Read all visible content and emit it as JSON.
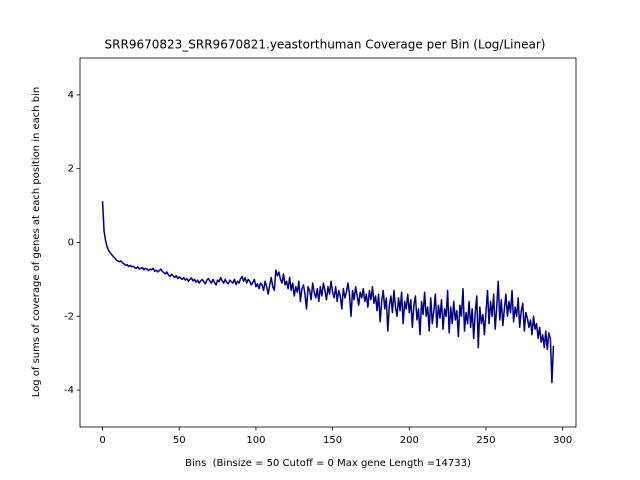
{
  "chart_data": {
    "type": "line",
    "title": "SRR9670823_SRR9670821.yeastorthuman Coverage per Bin (Log/Linear)",
    "x_label": "Bins  (Binsize = 50 Cutoff = 0 Max gene Length =14733)",
    "y_label": "Log of sums of coverage of genes at each position in each bin",
    "color": "#000080",
    "xlim": [
      -14.7,
      308.7
    ],
    "ylim": [
      -5,
      5
    ],
    "xticks": [
      0,
      50,
      100,
      150,
      200,
      250,
      300
    ],
    "yticks": [
      -4,
      -2,
      0,
      2,
      4
    ],
    "x": [
      0,
      1,
      2,
      3,
      4,
      5,
      6,
      7,
      8,
      9,
      10,
      11,
      12,
      13,
      14,
      15,
      16,
      17,
      18,
      19,
      20,
      21,
      22,
      23,
      24,
      25,
      26,
      27,
      28,
      29,
      30,
      31,
      32,
      33,
      34,
      35,
      36,
      37,
      38,
      39,
      40,
      41,
      42,
      43,
      44,
      45,
      46,
      47,
      48,
      49,
      50,
      51,
      52,
      53,
      54,
      55,
      56,
      57,
      58,
      59,
      60,
      61,
      62,
      63,
      64,
      65,
      66,
      67,
      68,
      69,
      70,
      71,
      72,
      73,
      74,
      75,
      76,
      77,
      78,
      79,
      80,
      81,
      82,
      83,
      84,
      85,
      86,
      87,
      88,
      89,
      90,
      91,
      92,
      93,
      94,
      95,
      96,
      97,
      98,
      99,
      100,
      101,
      102,
      103,
      104,
      105,
      106,
      107,
      108,
      109,
      110,
      111,
      112,
      113,
      114,
      115,
      116,
      117,
      118,
      119,
      120,
      121,
      122,
      123,
      124,
      125,
      126,
      127,
      128,
      129,
      130,
      131,
      132,
      133,
      134,
      135,
      136,
      137,
      138,
      139,
      140,
      141,
      142,
      143,
      144,
      145,
      146,
      147,
      148,
      149,
      150,
      151,
      152,
      153,
      154,
      155,
      156,
      157,
      158,
      159,
      160,
      161,
      162,
      163,
      164,
      165,
      166,
      167,
      168,
      169,
      170,
      171,
      172,
      173,
      174,
      175,
      176,
      177,
      178,
      179,
      180,
      181,
      182,
      183,
      184,
      185,
      186,
      187,
      188,
      189,
      190,
      191,
      192,
      193,
      194,
      195,
      196,
      197,
      198,
      199,
      200,
      201,
      202,
      203,
      204,
      205,
      206,
      207,
      208,
      209,
      210,
      211,
      212,
      213,
      214,
      215,
      216,
      217,
      218,
      219,
      220,
      221,
      222,
      223,
      224,
      225,
      226,
      227,
      228,
      229,
      230,
      231,
      232,
      233,
      234,
      235,
      236,
      237,
      238,
      239,
      240,
      241,
      242,
      243,
      244,
      245,
      246,
      247,
      248,
      249,
      250,
      251,
      252,
      253,
      254,
      255,
      256,
      257,
      258,
      259,
      260,
      261,
      262,
      263,
      264,
      265,
      266,
      267,
      268,
      269,
      270,
      271,
      272,
      273,
      274,
      275,
      276,
      277,
      278,
      279,
      280,
      281,
      282,
      283,
      284,
      285,
      286,
      287,
      288,
      289,
      290,
      291,
      292,
      293,
      294
    ],
    "values": [
      1.12,
      0.3,
      0.05,
      -0.12,
      -0.22,
      -0.28,
      -0.33,
      -0.38,
      -0.42,
      -0.48,
      -0.5,
      -0.52,
      -0.5,
      -0.55,
      -0.58,
      -0.62,
      -0.6,
      -0.65,
      -0.62,
      -0.66,
      -0.64,
      -0.68,
      -0.7,
      -0.66,
      -0.72,
      -0.7,
      -0.68,
      -0.74,
      -0.7,
      -0.72,
      -0.76,
      -0.72,
      -0.74,
      -0.7,
      -0.78,
      -0.75,
      -0.8,
      -0.76,
      -0.72,
      -0.78,
      -0.82,
      -0.85,
      -0.8,
      -0.88,
      -0.92,
      -0.86,
      -0.9,
      -0.95,
      -0.9,
      -0.98,
      -0.93,
      -0.97,
      -1.0,
      -0.95,
      -1.02,
      -0.98,
      -1.05,
      -1.0,
      -0.96,
      -1.04,
      -1.0,
      -1.08,
      -1.02,
      -1.1,
      -1.04,
      -1.0,
      -1.06,
      -1.12,
      -1.02,
      -0.98,
      -1.05,
      -1.1,
      -1.0,
      -1.08,
      -1.15,
      -1.02,
      -1.06,
      -0.95,
      -1.04,
      -1.1,
      -1.0,
      -1.08,
      -1.12,
      -1.02,
      -1.06,
      -1.1,
      -1.0,
      -1.14,
      -1.05,
      -1.1,
      -0.98,
      -0.92,
      -1.05,
      -0.95,
      -1.1,
      -1.0,
      -1.05,
      -1.15,
      -1.08,
      -1.0,
      -1.2,
      -1.12,
      -1.25,
      -1.1,
      -1.15,
      -1.3,
      -1.05,
      -1.2,
      -1.4,
      -1.15,
      -0.95,
      -1.2,
      -1.3,
      -0.75,
      -0.9,
      -0.8,
      -1.0,
      -1.1,
      -0.85,
      -1.15,
      -1.05,
      -1.25,
      -0.95,
      -1.3,
      -1.1,
      -1.45,
      -1.2,
      -1.35,
      -1.05,
      -1.6,
      -1.25,
      -1.15,
      -1.4,
      -1.8,
      -1.2,
      -1.3,
      -1.55,
      -1.1,
      -1.35,
      -1.5,
      -1.25,
      -1.6,
      -1.2,
      -1.45,
      -1.1,
      -1.3,
      -1.55,
      -1.2,
      -1.4,
      -1.05,
      -1.35,
      -1.5,
      -1.2,
      -1.6,
      -1.3,
      -1.45,
      -1.8,
      -1.25,
      -1.5,
      -1.35,
      -1.1,
      -1.4,
      -2.0,
      -1.3,
      -1.55,
      -1.2,
      -1.45,
      -1.7,
      -1.35,
      -1.5,
      -1.25,
      -1.6,
      -1.4,
      -1.75,
      -1.3,
      -1.55,
      -1.2,
      -1.65,
      -1.45,
      -1.85,
      -1.4,
      -2.15,
      -1.6,
      -1.3,
      -1.8,
      -1.5,
      -2.4,
      -1.7,
      -1.45,
      -1.9,
      -1.3,
      -1.75,
      -2.0,
      -1.5,
      -1.85,
      -1.35,
      -2.2,
      -1.6,
      -1.8,
      -1.4,
      -1.9,
      -1.55,
      -2.3,
      -1.7,
      -1.45,
      -2.1,
      -1.8,
      -2.5,
      -1.6,
      -1.95,
      -1.35,
      -2.0,
      -1.75,
      -2.4,
      -1.5,
      -2.2,
      -1.85,
      -1.4,
      -2.3,
      -1.7,
      -2.05,
      -1.55,
      -2.35,
      -1.8,
      -2.0,
      -1.3,
      -2.45,
      -1.75,
      -2.2,
      -1.6,
      -2.1,
      -1.85,
      -2.55,
      -1.7,
      -2.0,
      -1.25,
      -2.4,
      -1.9,
      -2.2,
      -1.6,
      -2.3,
      -1.8,
      -2.6,
      -1.9,
      -1.45,
      -2.85,
      -1.75,
      -2.2,
      -1.95,
      -2.5,
      -1.9,
      -1.3,
      -2.2,
      -1.6,
      -2.0,
      -1.4,
      -2.35,
      -1.75,
      -1.05,
      -2.1,
      -1.55,
      -2.25,
      -1.8,
      -1.4,
      -2.0,
      -1.6,
      -1.9,
      -1.3,
      -2.15,
      -1.75,
      -2.0,
      -1.5,
      -2.3,
      -1.85,
      -1.65,
      -2.4,
      -1.9,
      -2.05,
      -2.3,
      -2.1,
      -2.5,
      -2.0,
      -2.35,
      -2.2,
      -2.6,
      -2.3,
      -2.7,
      -2.5,
      -2.85,
      -2.4,
      -2.9,
      -2.45,
      -2.6,
      -3.8,
      -2.8
    ]
  }
}
